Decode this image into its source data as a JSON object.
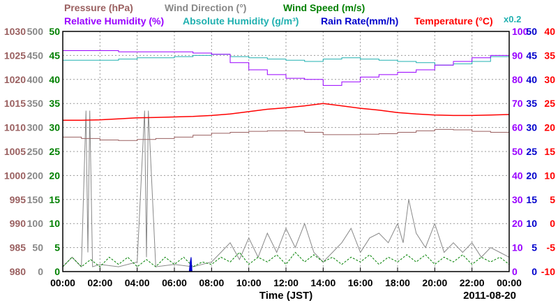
{
  "colors": {
    "pressure": "#9a6060",
    "wind_direction": "#888888",
    "wind_speed": "#008000",
    "relative_humidity": "#9900ff",
    "absolute_humidity": "#20b0b0",
    "rain_rate": "#0000cc",
    "temperature": "#ff0000",
    "grid": "#999999",
    "frame": "#000000"
  },
  "legend": {
    "row1": [
      {
        "key": "pressure",
        "text": "Pressure (hPa)"
      },
      {
        "key": "wind_direction",
        "text": "Wind Direction (°)"
      },
      {
        "key": "wind_speed",
        "text": "Wind Speed (m/s)"
      }
    ],
    "row2": [
      {
        "key": "relative_humidity",
        "text": "Relative Humidity (%)"
      },
      {
        "key": "absolute_humidity",
        "text": "Absolute Humidity (g/m³)"
      },
      {
        "key": "rain_rate",
        "text": "Rain Rate(mm/h)"
      },
      {
        "key": "temperature",
        "text": "Temperature (°C)"
      }
    ],
    "multiplier": "x0.2"
  },
  "chart_data": {
    "type": "line",
    "xlabel": "Time (JST)",
    "date": "2011-08-20",
    "x_ticks": [
      "00:00",
      "02:00",
      "04:00",
      "06:00",
      "08:00",
      "10:00",
      "12:00",
      "14:00",
      "16:00",
      "18:00",
      "20:00",
      "22:00",
      "00:00"
    ],
    "axes": {
      "pressure_ticks": [
        980,
        985,
        990,
        995,
        1000,
        1005,
        1010,
        1015,
        1020,
        1025,
        1030
      ],
      "wind_direction_ticks": [
        0,
        50,
        100,
        150,
        200,
        250,
        300,
        350,
        400,
        450,
        500
      ],
      "wind_speed_ticks": [
        0,
        5,
        10,
        15,
        20,
        25,
        30,
        35,
        40,
        45,
        50
      ],
      "humidity_ticks": [
        0,
        10,
        20,
        30,
        40,
        50,
        60,
        70,
        80,
        90,
        100
      ],
      "rain_rate_ticks": [
        0,
        5,
        10,
        15,
        20,
        25,
        30,
        35,
        40,
        45,
        50
      ],
      "temperature_ticks": [
        -10,
        -5,
        0,
        5,
        10,
        15,
        20,
        25,
        30,
        35,
        40
      ]
    },
    "series": [
      {
        "name": "Pressure (hPa)",
        "key": "pressure",
        "ylim": [
          980,
          1030
        ],
        "x": [
          0,
          1,
          2,
          3,
          4,
          5,
          6,
          7,
          8,
          9,
          10,
          11,
          12,
          13,
          14,
          15,
          16,
          17,
          18,
          19,
          20,
          21,
          22,
          23,
          24
        ],
        "y": [
          1008,
          1007.7,
          1007.4,
          1007.3,
          1007.5,
          1007.7,
          1008,
          1008.4,
          1008.8,
          1009,
          1009.2,
          1009.3,
          1009.3,
          1009,
          1008.5,
          1008.5,
          1008.6,
          1008.7,
          1009,
          1009.3,
          1009.6,
          1009.5,
          1009.2,
          1009,
          1008.8
        ]
      },
      {
        "name": "Absolute Humidity (g/m³)",
        "key": "absolute_humidity",
        "ylim": [
          0,
          100
        ],
        "x": [
          0,
          1,
          2,
          3,
          4,
          5,
          6,
          7,
          8,
          9,
          10,
          11,
          12,
          13,
          14,
          15,
          16,
          17,
          18,
          19,
          20,
          21,
          22,
          23,
          24
        ],
        "y": [
          88,
          88,
          88,
          88.5,
          89,
          89,
          89.5,
          90,
          90.5,
          89.5,
          89,
          88.5,
          88,
          87.5,
          88.5,
          89,
          88.5,
          88,
          87.5,
          87,
          86,
          86.5,
          87.5,
          89.5,
          90
        ]
      },
      {
        "name": "Relative Humidity (%)",
        "key": "relative_humidity",
        "ylim": [
          0,
          100
        ],
        "x": [
          0,
          1,
          2,
          3,
          4,
          5,
          6,
          7,
          8,
          9,
          10,
          11,
          12,
          13,
          14,
          15,
          16,
          17,
          18,
          19,
          20,
          21,
          22,
          23,
          24
        ],
        "y": [
          92,
          92,
          92,
          91.5,
          91.5,
          91.5,
          91.5,
          91,
          90.5,
          87,
          84,
          82,
          80.5,
          80,
          77.5,
          79,
          81,
          82,
          83,
          84,
          86,
          87.5,
          89,
          90,
          90.5
        ]
      },
      {
        "name": "Temperature (°C)",
        "key": "temperature",
        "ylim": [
          -10,
          40
        ],
        "x": [
          0,
          1,
          2,
          3,
          4,
          5,
          6,
          7,
          8,
          9,
          10,
          11,
          12,
          13,
          14,
          15,
          16,
          17,
          18,
          19,
          20,
          21,
          22,
          23,
          24
        ],
        "y": [
          21.5,
          21.5,
          21.6,
          21.8,
          22,
          22.1,
          22.2,
          22.3,
          22.5,
          22.8,
          23.3,
          23.8,
          24.1,
          24.5,
          25,
          24.5,
          24,
          23.6,
          23.1,
          22.8,
          22.6,
          22.5,
          22.5,
          22.6,
          22.7
        ]
      },
      {
        "name": "Wind Direction (°)",
        "key": "wind_direction",
        "ylim": [
          0,
          500
        ],
        "x": [
          0,
          0.5,
          1,
          1.25,
          1.35,
          1.45,
          1.6,
          2,
          3,
          4,
          4.4,
          4.5,
          4.6,
          5,
          6,
          7,
          8,
          8.5,
          9,
          9.5,
          10,
          10.5,
          11,
          11.5,
          12,
          12.5,
          13,
          13.5,
          14,
          14.5,
          15,
          15.5,
          16,
          16.5,
          17,
          17.5,
          18,
          18.3,
          18.6,
          19,
          19.5,
          20,
          20.5,
          21,
          21.5,
          22,
          22.5,
          23,
          23.5,
          24
        ],
        "y": [
          10,
          30,
          10,
          335,
          40,
          335,
          10,
          15,
          10,
          20,
          335,
          30,
          335,
          10,
          15,
          10,
          20,
          40,
          60,
          25,
          70,
          30,
          80,
          40,
          90,
          50,
          100,
          40,
          20,
          40,
          60,
          90,
          40,
          70,
          80,
          60,
          100,
          60,
          150,
          80,
          50,
          100,
          40,
          60,
          40,
          60,
          30,
          50,
          40,
          30
        ]
      },
      {
        "name": "Wind Speed (m/s)",
        "key": "wind_speed",
        "ylim": [
          0,
          50
        ],
        "x": [
          0,
          0.5,
          1,
          1.5,
          2,
          2.5,
          3,
          3.5,
          4,
          4.5,
          5,
          5.5,
          6,
          6.5,
          7,
          7.5,
          8,
          8.5,
          9,
          9.5,
          10,
          10.5,
          11,
          11.5,
          12,
          12.5,
          13,
          13.5,
          14,
          14.5,
          15,
          15.5,
          16,
          16.5,
          17,
          17.5,
          18,
          18.5,
          19,
          19.5,
          20,
          20.5,
          21,
          21.5,
          22,
          22.5,
          23,
          23.5,
          24
        ],
        "y": [
          1,
          3,
          1,
          2.5,
          1,
          3,
          1.5,
          3,
          1,
          2.5,
          1,
          3,
          1.5,
          3,
          1,
          2,
          1.5,
          3,
          2,
          4,
          1.5,
          3,
          2,
          3.5,
          1.5,
          4,
          2,
          3.5,
          2,
          3,
          1.5,
          3,
          2,
          3.5,
          1.5,
          3,
          2,
          3.5,
          2,
          3.5,
          1.5,
          3,
          2,
          3.5,
          1.5,
          3,
          2,
          3,
          1.5
        ]
      },
      {
        "name": "Rain Rate(mm/h)",
        "key": "rain_rate",
        "ylim": [
          0,
          50
        ],
        "x": [
          0,
          6.8,
          6.85,
          6.9,
          6.95,
          24
        ],
        "y": [
          0,
          0,
          2,
          3,
          0,
          0
        ]
      }
    ]
  }
}
